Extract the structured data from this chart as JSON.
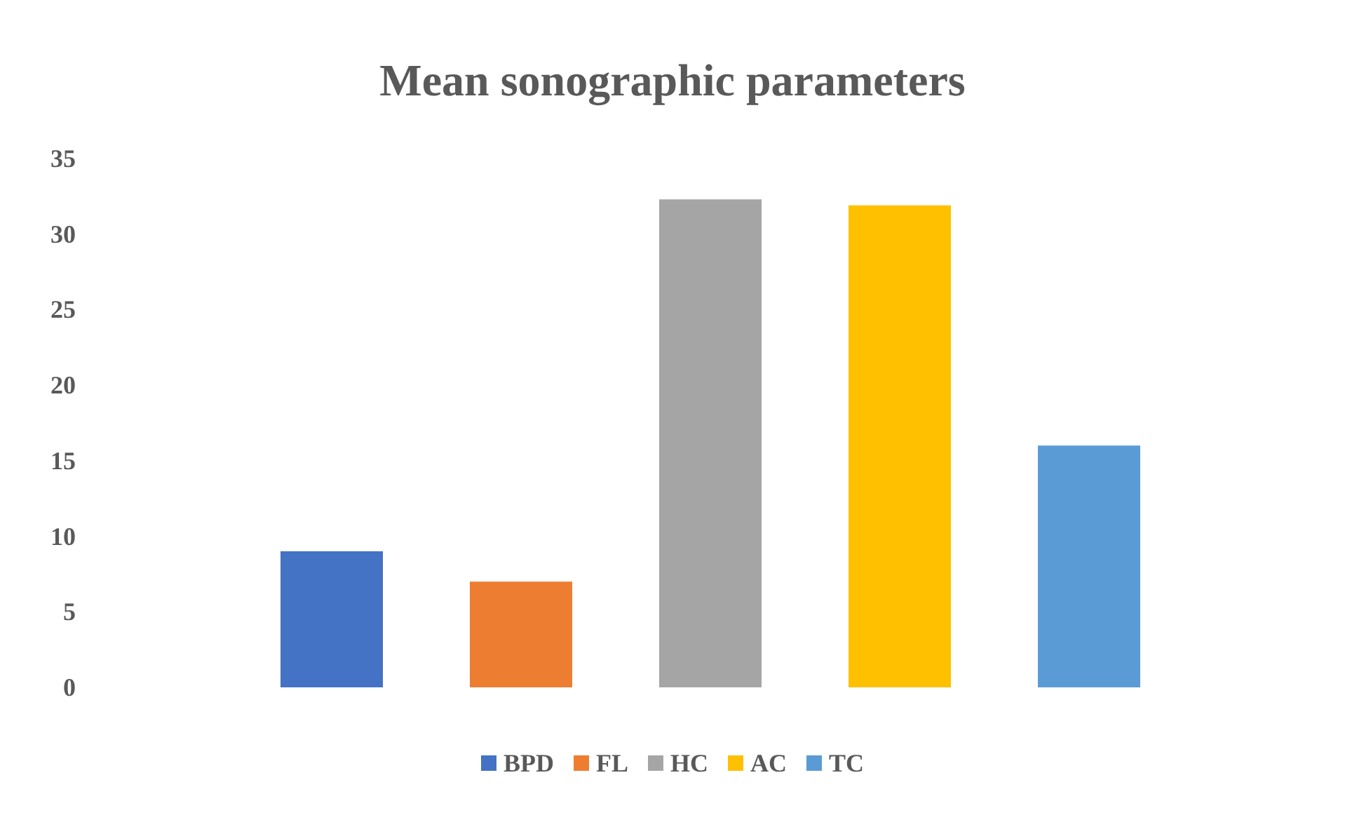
{
  "chart_data": {
    "type": "bar",
    "title": "Mean sonographic parameters",
    "categories": [
      null,
      null,
      null,
      null,
      null
    ],
    "stacked": true,
    "series": [
      {
        "name": "BPD",
        "color": "#4472c4",
        "values": [
          9,
          null,
          null,
          null,
          null
        ]
      },
      {
        "name": "FL",
        "color": "#ed7d31",
        "values": [
          null,
          7,
          null,
          null,
          null
        ]
      },
      {
        "name": "HC",
        "color": "#a5a5a5",
        "values": [
          null,
          null,
          32.3,
          null,
          null
        ]
      },
      {
        "name": "AC",
        "color": "#ffc000",
        "values": [
          null,
          null,
          null,
          31.9,
          null
        ]
      },
      {
        "name": "TC",
        "color": "#5b9bd5",
        "values": [
          null,
          null,
          null,
          null,
          16
        ]
      }
    ],
    "ylim": [
      0,
      35
    ],
    "yticks": [
      0,
      5,
      10,
      15,
      20,
      25,
      30,
      35
    ],
    "grid": false,
    "legend": "bottom"
  }
}
